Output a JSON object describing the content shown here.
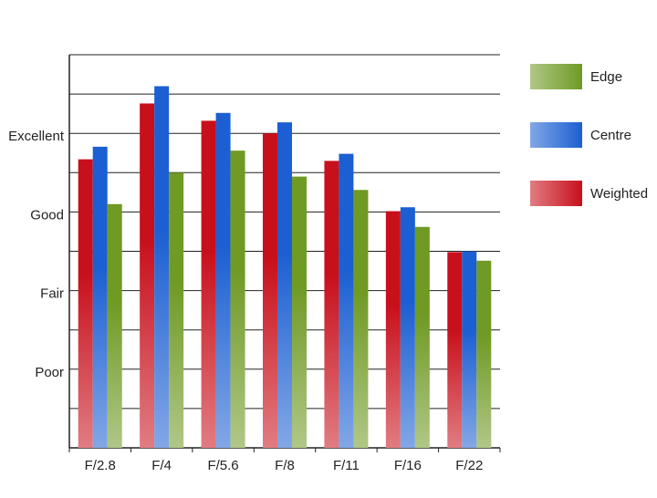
{
  "chart_data": {
    "type": "bar",
    "categories": [
      "F/2.8",
      "F/4",
      "F/5.6",
      "F/8",
      "F/11",
      "F/16",
      "F/22"
    ],
    "series": [
      {
        "name": "Weighted",
        "color": "#c8101c",
        "values": [
          3.67,
          4.38,
          4.16,
          4.0,
          3.65,
          3.01,
          2.49
        ]
      },
      {
        "name": "Centre",
        "color": "#1c5fd2",
        "values": [
          3.83,
          4.6,
          4.26,
          4.14,
          3.74,
          3.06,
          2.5
        ]
      },
      {
        "name": "Edge",
        "color": "#6f9a24",
        "values": [
          3.1,
          3.5,
          3.78,
          3.45,
          3.28,
          2.81,
          2.38
        ]
      }
    ],
    "ylim": [
      0,
      5
    ],
    "yticks": [
      {
        "value": 1,
        "label": "Poor"
      },
      {
        "value": 2,
        "label": "Fair"
      },
      {
        "value": 3,
        "label": "Good"
      },
      {
        "value": 4,
        "label": "Excellent"
      }
    ],
    "minor_grid": [
      0.5,
      1.5,
      2.5,
      3.5,
      4.5,
      5
    ],
    "grid": true,
    "legend": "right"
  }
}
